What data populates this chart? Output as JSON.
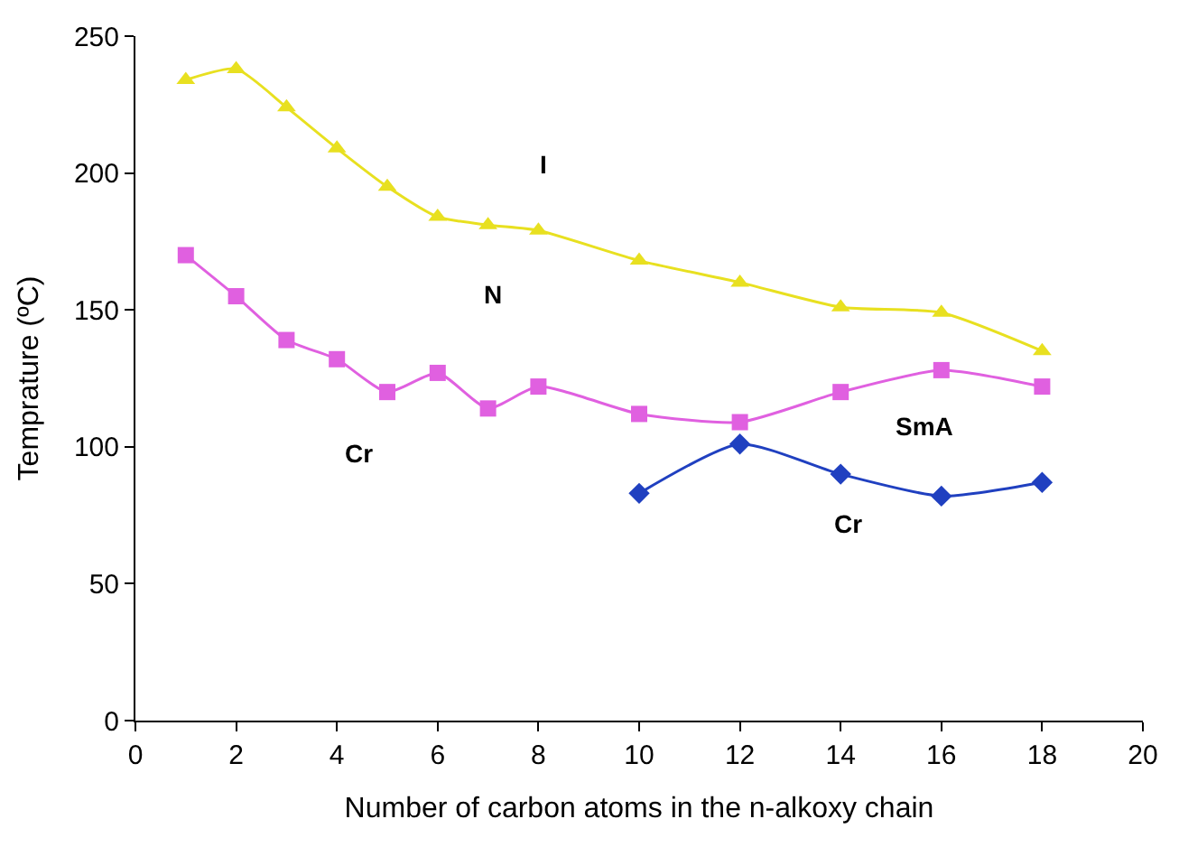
{
  "chart_data": {
    "type": "line",
    "xlabel": "Number of carbon atoms in the n-alkoxy chain",
    "ylabel": "Temprature (ºC)",
    "xlim": [
      0,
      20
    ],
    "xticks": [
      0,
      2,
      4,
      6,
      8,
      10,
      12,
      14,
      16,
      18,
      20
    ],
    "ylim": [
      0,
      250
    ],
    "yticks": [
      0,
      50,
      100,
      150,
      200,
      250
    ],
    "series": [
      {
        "color": "#e8e020",
        "marker": "triangle",
        "x": [
          1,
          2,
          3,
          4,
          5,
          6,
          7,
          8,
          10,
          12,
          14,
          16,
          18
        ],
        "values": [
          234,
          238,
          224,
          209,
          195,
          184,
          181,
          179,
          168,
          160,
          151,
          149,
          135
        ]
      },
      {
        "color": "#e060e0",
        "marker": "square",
        "x": [
          1,
          2,
          3,
          4,
          5,
          6,
          7,
          8,
          10,
          12,
          14,
          16,
          18
        ],
        "values": [
          170,
          155,
          139,
          132,
          120,
          127,
          114,
          122,
          112,
          109,
          120,
          128,
          122
        ]
      },
      {
        "color": "#2040c0",
        "marker": "diamond",
        "x": [
          10,
          12,
          14,
          16,
          18
        ],
        "values": [
          83,
          101,
          90,
          82,
          87
        ]
      }
    ],
    "annotations": [
      "I",
      "N",
      "Cr",
      "SmA",
      "Cr"
    ]
  }
}
